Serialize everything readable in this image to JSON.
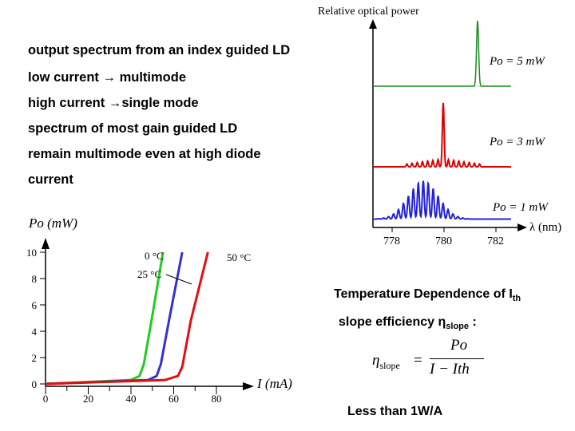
{
  "notes": [
    "output spectrum from an index guided LD",
    "low current → multimode",
    "high current →single mode",
    "spectrum of most gain guided LD",
    "remain multimode even at high diode",
    "current"
  ],
  "spectrum_chart": {
    "ylabel": "Relative optical power",
    "xlabel": "λ (nm)",
    "ticks": [
      "778",
      "780",
      "782"
    ],
    "curves": [
      {
        "label": "Po = 5 mW",
        "color": "#1a8a1a"
      },
      {
        "label": "Po = 3 mW",
        "color": "#dd0000"
      },
      {
        "label": "Po = 1 mW",
        "color": "#2222dd"
      }
    ]
  },
  "chart_data": {
    "type": "line",
    "ylabel": "Po (mW)",
    "xlabel": "I (mA)",
    "xlim": [
      0,
      90
    ],
    "ylim": [
      0,
      10
    ],
    "xticks": [
      "0",
      "20",
      "40",
      "60",
      "80"
    ],
    "yticks": [
      "0",
      "2",
      "4",
      "6",
      "8",
      "10"
    ],
    "series": [
      {
        "name": "0 °C",
        "color": "#22cc22",
        "x": [
          0,
          40,
          44,
          46,
          50,
          55
        ],
        "y": [
          0,
          0.3,
          0.6,
          1.5,
          5.2,
          10
        ]
      },
      {
        "name": "25 °C",
        "color": "#3333cc",
        "x": [
          0,
          48,
          52,
          54,
          58,
          64
        ],
        "y": [
          0,
          0.3,
          0.6,
          1.5,
          5.0,
          10
        ]
      },
      {
        "name": "50 °C",
        "color": "#dd1111",
        "x": [
          0,
          56,
          62,
          64,
          68,
          76
        ],
        "y": [
          0,
          0.3,
          0.6,
          1.3,
          4.8,
          10
        ]
      }
    ]
  },
  "temperature": {
    "title": "Temperature Dependence of I",
    "title_sub": "th",
    "slope_text": "slope efficiency η",
    "slope_sub": "slope",
    "slope_tail": " :",
    "eq_lhs": "η",
    "eq_lhs_sub": "slope",
    "eq_equals": "=",
    "eq_num": "Po",
    "eq_den": "I − Ith",
    "conclusion": "Less than 1W/A"
  }
}
